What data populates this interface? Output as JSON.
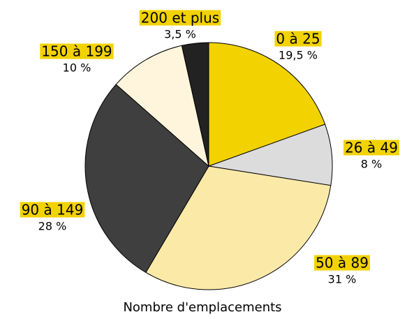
{
  "chart_data": {
    "type": "pie",
    "title": "Nombre d'emplacements",
    "categories": [
      "0 à 25",
      "26 à 49",
      "50 à 89",
      "90 à 149",
      "150 à 199",
      "200 et plus"
    ],
    "values": [
      19.5,
      8,
      31,
      28,
      10,
      3.5
    ],
    "value_labels": [
      "19,5 %",
      "8 %",
      "31 %",
      "28 %",
      "10 %",
      "3,5 %"
    ],
    "colors": [
      "#f2d200",
      "#dcdcdc",
      "#fbe9a8",
      "#3f3f3f",
      "#fff5dc",
      "#222222"
    ],
    "label_color": "#f2d200"
  }
}
